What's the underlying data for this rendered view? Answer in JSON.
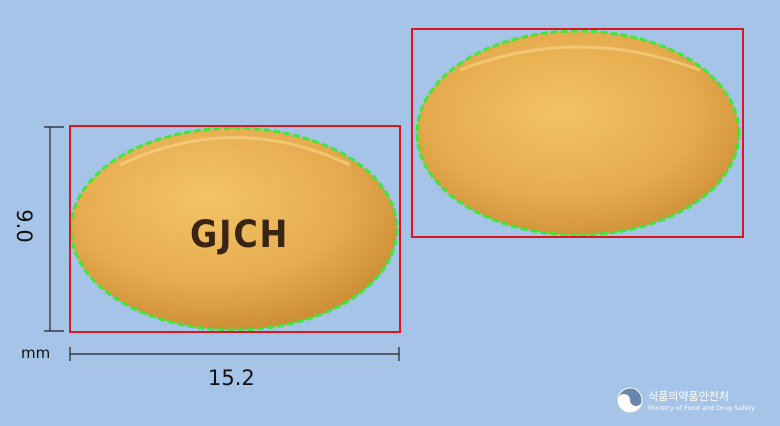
{
  "pill": {
    "imprint_front": "GJCH",
    "imprint_back": "",
    "color_hex": "#e0a84a"
  },
  "dimensions": {
    "length": "15.2",
    "width": "9.0",
    "unit": "mm"
  },
  "watermark": {
    "name_ko": "식품의약품안전처",
    "name_en": "Ministry of Food and Drug Safety"
  }
}
